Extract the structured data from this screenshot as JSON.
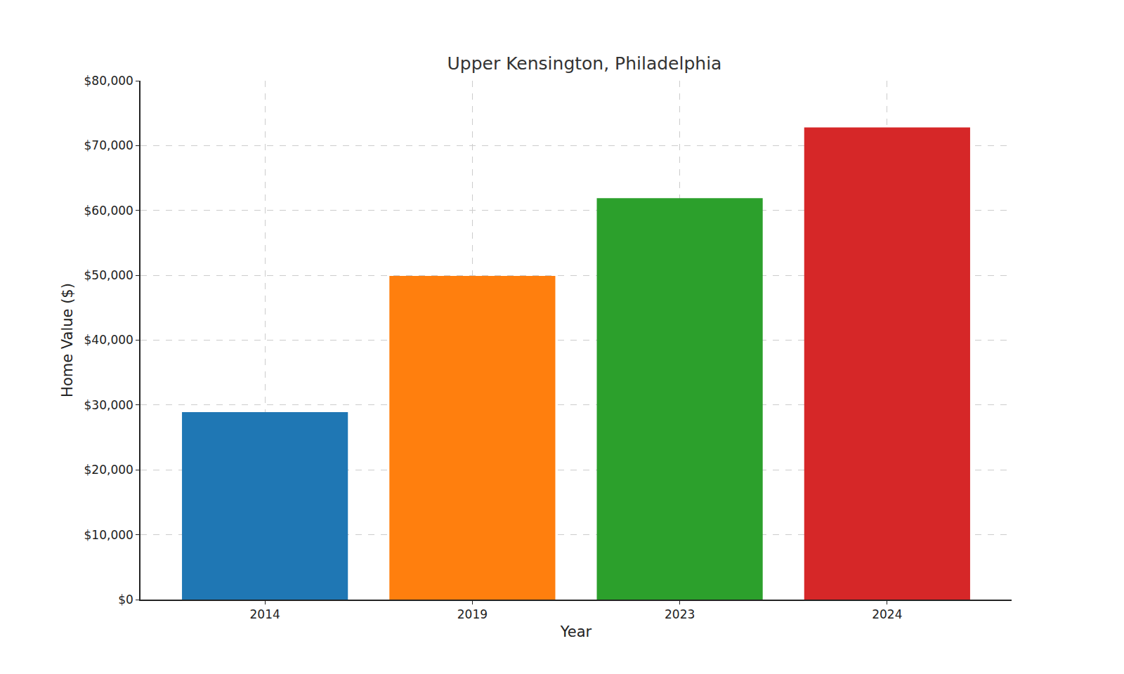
{
  "chart_data": {
    "type": "bar",
    "title": "Upper Kensington, Philadelphia",
    "x_label": "Year",
    "y_label": "Home Value ($)",
    "categories": [
      "2014",
      "2019",
      "2023",
      "2024"
    ],
    "values": [
      28900,
      49900,
      61900,
      72800
    ],
    "colors": [
      "#1f77b4",
      "#ff7f0e",
      "#2ca02c",
      "#d62728"
    ],
    "ylim": [
      0,
      80000
    ],
    "yticks": [
      {
        "value": 0,
        "label": "$0"
      },
      {
        "value": 10000,
        "label": "$10,000"
      },
      {
        "value": 20000,
        "label": "$20,000"
      },
      {
        "value": 30000,
        "label": "$30,000"
      },
      {
        "value": 40000,
        "label": "$40,000"
      },
      {
        "value": 50000,
        "label": "$50,000"
      },
      {
        "value": 60000,
        "label": "$60,000"
      },
      {
        "value": 70000,
        "label": "$70,000"
      },
      {
        "value": 80000,
        "label": "$80,000"
      }
    ],
    "grid": true
  }
}
